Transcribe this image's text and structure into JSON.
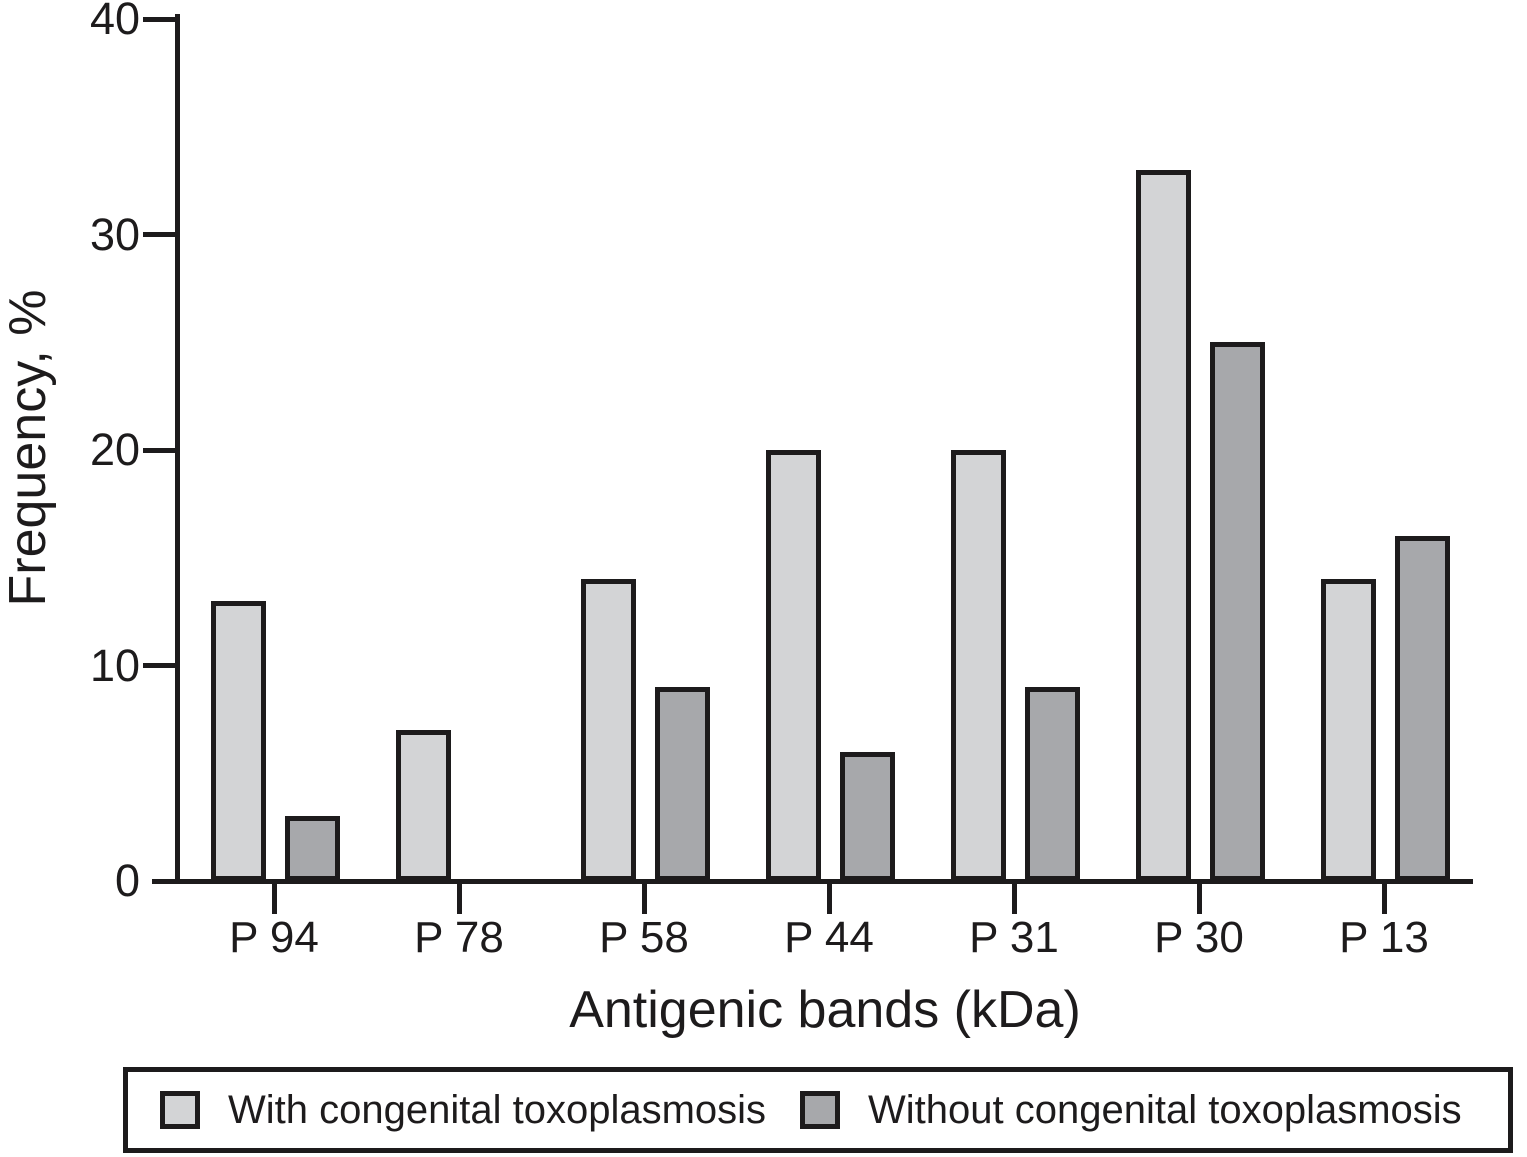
{
  "chart_data": {
    "type": "bar",
    "title": "",
    "xlabel": "Antigenic bands (kDa)",
    "ylabel": "Frequency, %",
    "ylim": [
      0,
      40
    ],
    "yticks": [
      0,
      10,
      20,
      30,
      40
    ],
    "grid": false,
    "legend_position": "bottom",
    "categories": [
      "P 94",
      "P 78",
      "P 58",
      "P 44",
      "P 31",
      "P 30",
      "P 13"
    ],
    "series": [
      {
        "name": "With congenital toxoplasmosis",
        "color": "#d3d4d6",
        "values": [
          13,
          7,
          14,
          20,
          20,
          33,
          14
        ]
      },
      {
        "name": "Without congenital toxoplasmosis",
        "color": "#a7a8ab",
        "values": [
          3,
          0,
          9,
          6,
          9,
          25,
          16
        ]
      }
    ]
  },
  "colors": {
    "axis": "#1d1b1c",
    "light_bar": "#d3d4d6",
    "dark_bar": "#a7a8ab",
    "background": "#ffffff"
  }
}
